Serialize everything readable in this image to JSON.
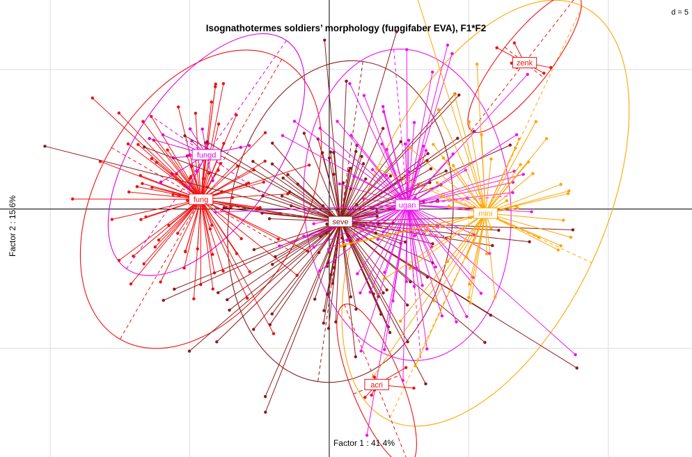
{
  "chart_data": {
    "type": "scatter",
    "title": "Isognathotermes soldiers’ morphology (fungifaber EVA), F1*F2",
    "xlabel": "Factor 1 : 41.4%",
    "ylabel": "Factor 2 : 15.6%",
    "scale_label": "d = 5",
    "grid": true,
    "grid_step": 5,
    "xlim": [
      -11.8,
      13
    ],
    "ylim": [
      -8.9,
      7.5
    ],
    "groups": [
      {
        "name": "fung",
        "color": "#ee1111",
        "center": [
          -4.6,
          0.35
        ],
        "n": 90,
        "spread": [
          2.3,
          2.6
        ],
        "tilt": 0.85,
        "ellipse": {
          "rx": 3.7,
          "ry": 5.8,
          "angle": 30
        },
        "axes": true
      },
      {
        "name": "fungd",
        "color": "#dd00dd",
        "center": [
          -4.4,
          1.95
        ],
        "n": 14,
        "spread": [
          1.4,
          1.0
        ],
        "tilt": 0.9,
        "ellipse": {
          "rx": 2.5,
          "ry": 5.0,
          "angle": 35
        },
        "axes": true
      },
      {
        "name": "seve",
        "color": "#8b1a1a",
        "center": [
          0.4,
          -0.45
        ],
        "n": 130,
        "spread": [
          3.0,
          2.9
        ],
        "tilt": 0.1,
        "ellipse": {
          "rx": 4.0,
          "ry": 5.8,
          "angle": 8
        },
        "axes": true
      },
      {
        "name": "ugan",
        "color": "#ee11ee",
        "center": [
          2.8,
          0.15
        ],
        "n": 85,
        "spread": [
          2.4,
          2.4
        ],
        "tilt": 0.2,
        "ellipse": {
          "rx": 3.7,
          "ry": 5.6,
          "angle": -5
        },
        "axes": true
      },
      {
        "name": "mini",
        "color": "#ffa500",
        "center": [
          5.6,
          -0.15
        ],
        "n": 55,
        "spread": [
          2.6,
          2.8
        ],
        "tilt": 0.3,
        "ellipse": {
          "rx": 4.2,
          "ry": 8.2,
          "angle": 25
        },
        "axes": true
      },
      {
        "name": "zenk",
        "color": "#ee1111",
        "center": [
          7.0,
          5.25
        ],
        "n": 7,
        "spread": [
          0.6,
          0.8
        ],
        "tilt": 1.2,
        "ellipse": {
          "rx": 0.9,
          "ry": 3.1,
          "angle": 38
        },
        "axes": true
      },
      {
        "name": "acri",
        "color": "#ee1111",
        "center": [
          1.7,
          -6.3
        ],
        "n": 7,
        "spread": [
          0.5,
          1.3
        ],
        "tilt": -1.4,
        "ellipse": {
          "rx": 0.9,
          "ry": 3.1,
          "angle": -22
        },
        "axes": true
      }
    ]
  }
}
